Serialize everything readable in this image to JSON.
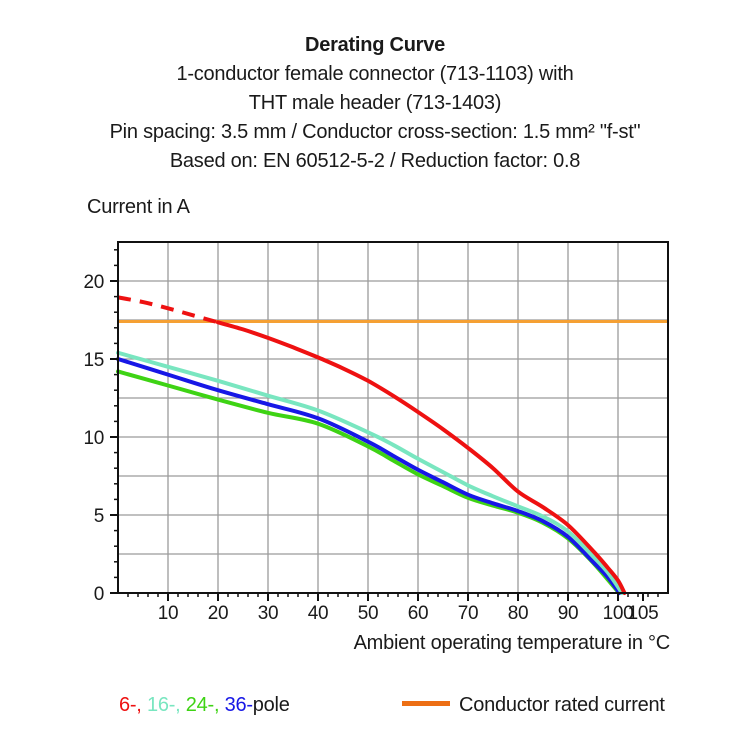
{
  "header": {
    "title": "Derating Curve",
    "line2": "1-conductor female connector (713-1103) with",
    "line3": "THT male header (713-1403)",
    "line4": "Pin spacing: 3.5 mm / Conductor cross-section: 1.5 mm² \"f-st\"",
    "line5": "Based on: EN 60512-5-2 / Reduction factor: 0.8"
  },
  "y_axis_title": "Current in A",
  "x_axis_title": "Ambient operating temperature in °C",
  "legend": {
    "poles": [
      {
        "label": "6-, ",
        "color": "#ee1111"
      },
      {
        "label": "16-, ",
        "color": "#79e6c0"
      },
      {
        "label": "24-, ",
        "color": "#3ed314"
      },
      {
        "label": "36-",
        "color": "#1717e6"
      }
    ],
    "poles_suffix": "pole",
    "rated_label": "Conductor rated current",
    "rated_swatch_color": "#ed6f14"
  },
  "colors": {
    "grid": "#9b9b9b",
    "frame": "#111111",
    "text": "#1a1a1a",
    "rated_line": "#f5a033"
  },
  "chart_data": {
    "type": "line",
    "title": "Derating Curve",
    "xlabel": "Ambient operating temperature in °C",
    "ylabel": "Current in A",
    "xlim": [
      0,
      110
    ],
    "ylim": [
      0,
      22.5
    ],
    "grid": true,
    "x_major_ticks": [
      10,
      20,
      30,
      40,
      50,
      60,
      70,
      80,
      90,
      100,
      105
    ],
    "y_major_ticks": [
      0,
      5,
      10,
      15,
      20
    ],
    "x_grid_step": 10,
    "y_grid_step": 2.5,
    "x_minor_step": 2,
    "y_minor_step": 1,
    "rated_current_line": {
      "label": "Conductor rated current",
      "value": 17.4,
      "color": "#f5a033"
    },
    "series": [
      {
        "name": "24-pole",
        "color": "#3ed314",
        "style": "solid",
        "points": [
          [
            0,
            14.2
          ],
          [
            10,
            13.3
          ],
          [
            20,
            12.4
          ],
          [
            30,
            11.55
          ],
          [
            40,
            10.85
          ],
          [
            50,
            9.4
          ],
          [
            55,
            8.5
          ],
          [
            60,
            7.6
          ],
          [
            65,
            6.85
          ],
          [
            70,
            6.1
          ],
          [
            75,
            5.6
          ],
          [
            80,
            5.15
          ],
          [
            85,
            4.5
          ],
          [
            90,
            3.5
          ],
          [
            95,
            1.95
          ],
          [
            100.2,
            0
          ]
        ]
      },
      {
        "name": "36-pole",
        "color": "#1717e6",
        "style": "solid",
        "points": [
          [
            0,
            15.0
          ],
          [
            10,
            14.0
          ],
          [
            20,
            13.0
          ],
          [
            30,
            12.1
          ],
          [
            40,
            11.2
          ],
          [
            50,
            9.7
          ],
          [
            55,
            8.8
          ],
          [
            60,
            7.9
          ],
          [
            65,
            7.1
          ],
          [
            70,
            6.3
          ],
          [
            75,
            5.75
          ],
          [
            80,
            5.25
          ],
          [
            85,
            4.6
          ],
          [
            90,
            3.6
          ],
          [
            95,
            2.0
          ],
          [
            98,
            1.0
          ],
          [
            100.3,
            0
          ]
        ]
      },
      {
        "name": "16-pole",
        "color": "#79e6c0",
        "style": "solid",
        "points": [
          [
            0,
            15.4
          ],
          [
            10,
            14.5
          ],
          [
            20,
            13.6
          ],
          [
            30,
            12.65
          ],
          [
            40,
            11.7
          ],
          [
            50,
            10.3
          ],
          [
            55,
            9.5
          ],
          [
            60,
            8.6
          ],
          [
            65,
            7.75
          ],
          [
            70,
            6.9
          ],
          [
            75,
            6.2
          ],
          [
            80,
            5.55
          ],
          [
            85,
            4.9
          ],
          [
            90,
            3.95
          ],
          [
            95,
            2.35
          ],
          [
            98,
            1.3
          ],
          [
            100.8,
            0
          ]
        ]
      },
      {
        "name": "6-pole",
        "color": "#ee1111",
        "style": "dashed-then-solid",
        "dashed_points": [
          [
            0,
            18.95
          ],
          [
            5,
            18.65
          ],
          [
            10,
            18.25
          ],
          [
            15,
            17.8
          ],
          [
            20,
            17.35
          ]
        ],
        "points": [
          [
            20,
            17.35
          ],
          [
            25,
            16.9
          ],
          [
            30,
            16.35
          ],
          [
            35,
            15.75
          ],
          [
            40,
            15.1
          ],
          [
            45,
            14.4
          ],
          [
            50,
            13.6
          ],
          [
            55,
            12.65
          ],
          [
            60,
            11.6
          ],
          [
            65,
            10.5
          ],
          [
            70,
            9.3
          ],
          [
            75,
            8.0
          ],
          [
            80,
            6.5
          ],
          [
            85,
            5.5
          ],
          [
            90,
            4.35
          ],
          [
            95,
            2.7
          ],
          [
            98,
            1.6
          ],
          [
            100,
            0.8
          ],
          [
            101.3,
            0
          ]
        ]
      }
    ]
  }
}
